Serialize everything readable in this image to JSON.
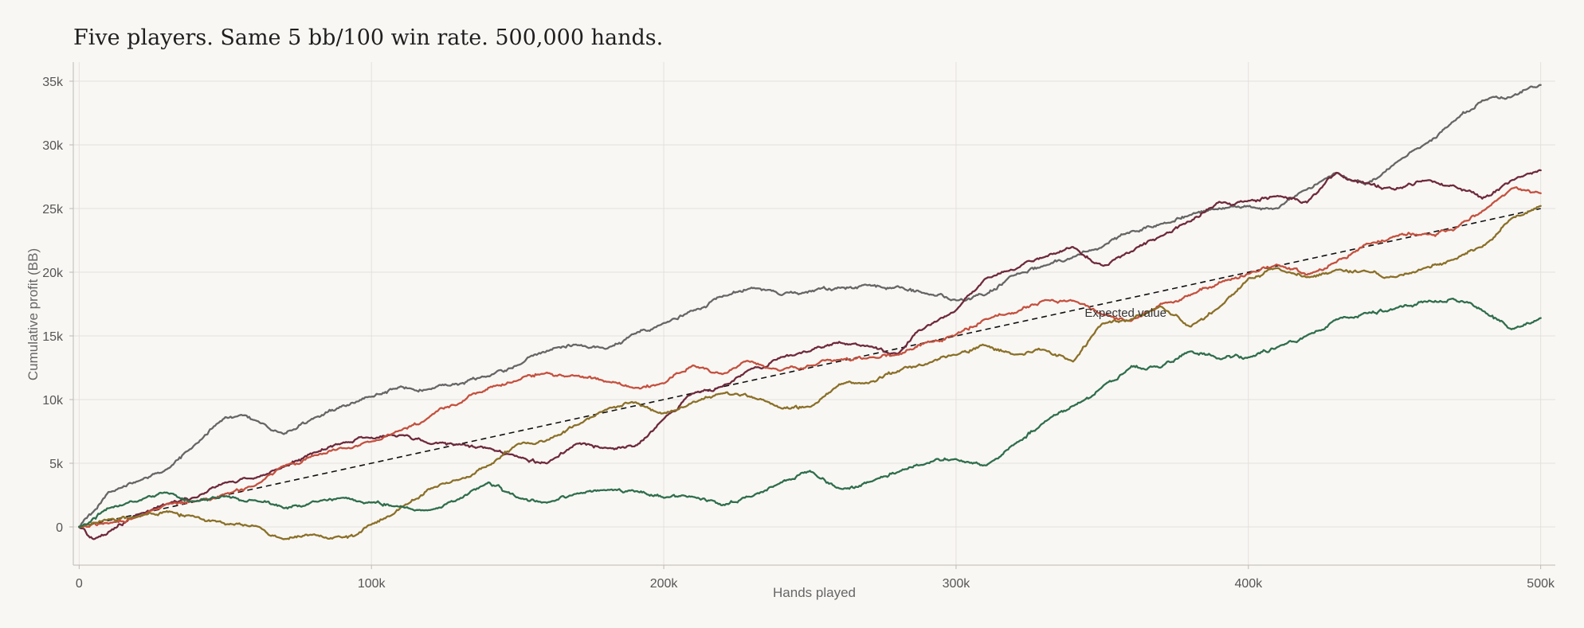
{
  "chart_data": {
    "type": "line",
    "title": "Five players. Same 5 bb/100 win rate. 500,000 hands.",
    "xlabel": "Hands played",
    "ylabel": "Cumulative profit (BB)",
    "xlim": [
      -2000,
      505000
    ],
    "ylim": [
      -3000,
      36500
    ],
    "x_ticks": [
      0,
      100000,
      200000,
      300000,
      400000,
      500000
    ],
    "x_tick_labels": [
      "0",
      "100k",
      "200k",
      "300k",
      "400k",
      "500k"
    ],
    "y_ticks": [
      0,
      5000,
      10000,
      15000,
      20000,
      25000,
      30000,
      35000
    ],
    "y_tick_labels": [
      "0",
      "5k",
      "10k",
      "15k",
      "20k",
      "25k",
      "30k",
      "35k"
    ],
    "grid": true,
    "annotation": {
      "text": "Expected value",
      "x": 344000,
      "y": 16500
    },
    "expected_value": {
      "x": [
        0,
        500000
      ],
      "y": [
        0,
        25000
      ],
      "style": "dashed",
      "color": "#111111"
    },
    "series": [
      {
        "color": "#666666",
        "x": [
          0,
          10000,
          20000,
          30000,
          40000,
          50000,
          55000,
          60000,
          70000,
          80000,
          90000,
          100000,
          110000,
          120000,
          130000,
          140000,
          150000,
          160000,
          170000,
          180000,
          190000,
          200000,
          210000,
          220000,
          230000,
          240000,
          250000,
          260000,
          270000,
          280000,
          290000,
          300000,
          310000,
          320000,
          330000,
          340000,
          350000,
          360000,
          370000,
          380000,
          390000,
          400000,
          410000,
          420000,
          430000,
          440000,
          450000,
          460000,
          470000,
          480000,
          490000,
          500000
        ],
        "y": [
          0,
          2700,
          3600,
          4500,
          6500,
          8600,
          8800,
          8400,
          7300,
          8500,
          9500,
          10200,
          11000,
          10800,
          11200,
          11800,
          12700,
          13800,
          14300,
          14000,
          15200,
          16000,
          17000,
          18100,
          18800,
          18200,
          18500,
          18800,
          19000,
          18900,
          18300,
          17800,
          18200,
          19800,
          20500,
          21200,
          22000,
          23200,
          23800,
          24500,
          25000,
          25200,
          25000,
          26500,
          27800,
          26900,
          28500,
          30000,
          31800,
          33500,
          33800,
          34700
        ]
      },
      {
        "color": "#6e2a3c",
        "x": [
          0,
          5000,
          10000,
          20000,
          30000,
          40000,
          50000,
          60000,
          70000,
          80000,
          90000,
          100000,
          110000,
          120000,
          130000,
          140000,
          150000,
          160000,
          170000,
          180000,
          190000,
          200000,
          210000,
          220000,
          230000,
          240000,
          250000,
          260000,
          270000,
          280000,
          290000,
          300000,
          310000,
          320000,
          330000,
          340000,
          350000,
          360000,
          370000,
          380000,
          390000,
          400000,
          410000,
          420000,
          430000,
          440000,
          450000,
          460000,
          470000,
          480000,
          490000,
          500000
        ],
        "y": [
          0,
          -1000,
          -400,
          1000,
          1800,
          2300,
          3500,
          3800,
          4700,
          5800,
          6600,
          7000,
          7200,
          6500,
          6500,
          6200,
          5500,
          5000,
          6500,
          6200,
          6300,
          8500,
          10500,
          11000,
          12400,
          13300,
          13800,
          14500,
          14200,
          13600,
          15800,
          17000,
          19500,
          20200,
          21200,
          22000,
          20500,
          21600,
          22800,
          24000,
          25500,
          25600,
          26000,
          25500,
          27800,
          27000,
          26500,
          27200,
          26800,
          25800,
          27200,
          28000
        ]
      },
      {
        "color": "#c4513f",
        "x": [
          0,
          10000,
          20000,
          30000,
          40000,
          50000,
          60000,
          70000,
          80000,
          90000,
          100000,
          110000,
          120000,
          130000,
          140000,
          150000,
          160000,
          170000,
          180000,
          190000,
          200000,
          210000,
          220000,
          230000,
          240000,
          250000,
          260000,
          270000,
          280000,
          290000,
          300000,
          310000,
          320000,
          330000,
          340000,
          350000,
          360000,
          370000,
          380000,
          390000,
          400000,
          410000,
          420000,
          430000,
          440000,
          450000,
          460000,
          470000,
          480000,
          490000,
          500000
        ],
        "y": [
          0,
          300,
          800,
          1800,
          2000,
          2600,
          3200,
          4800,
          5600,
          6200,
          6700,
          7600,
          8700,
          9700,
          10900,
          11500,
          12100,
          11900,
          11400,
          10900,
          11300,
          12700,
          12000,
          13000,
          12300,
          12700,
          13100,
          13300,
          13500,
          14500,
          15100,
          16300,
          16800,
          17800,
          17800,
          16700,
          16200,
          17500,
          18200,
          19200,
          19900,
          20600,
          19800,
          20800,
          22200,
          22800,
          23000,
          23300,
          24800,
          26600,
          26200
        ]
      },
      {
        "color": "#8a7028",
        "x": [
          0,
          10000,
          20000,
          30000,
          40000,
          50000,
          60000,
          70000,
          80000,
          90000,
          95000,
          100000,
          110000,
          120000,
          130000,
          140000,
          150000,
          160000,
          170000,
          180000,
          190000,
          200000,
          210000,
          220000,
          230000,
          240000,
          250000,
          260000,
          270000,
          280000,
          290000,
          300000,
          310000,
          320000,
          330000,
          340000,
          350000,
          360000,
          370000,
          380000,
          390000,
          400000,
          410000,
          420000,
          430000,
          440000,
          450000,
          460000,
          470000,
          480000,
          490000,
          500000
        ],
        "y": [
          0,
          600,
          800,
          1200,
          800,
          200,
          100,
          -1000,
          -600,
          -800,
          -600,
          200,
          1500,
          3000,
          3700,
          4800,
          6500,
          6800,
          8000,
          9200,
          9800,
          8900,
          9800,
          10500,
          10200,
          9300,
          9400,
          11200,
          11300,
          12200,
          12800,
          13500,
          14300,
          13500,
          13900,
          13000,
          16000,
          16300,
          17300,
          15700,
          17200,
          19500,
          20300,
          19600,
          20200,
          20100,
          19600,
          20300,
          21000,
          22000,
          24200,
          25200
        ]
      },
      {
        "color": "#2f6e4c",
        "x": [
          0,
          10000,
          20000,
          30000,
          40000,
          50000,
          60000,
          70000,
          80000,
          90000,
          100000,
          110000,
          120000,
          130000,
          140000,
          150000,
          160000,
          170000,
          180000,
          190000,
          200000,
          210000,
          220000,
          230000,
          240000,
          250000,
          260000,
          270000,
          280000,
          290000,
          300000,
          310000,
          320000,
          330000,
          340000,
          350000,
          360000,
          370000,
          380000,
          390000,
          400000,
          410000,
          420000,
          430000,
          440000,
          450000,
          460000,
          470000,
          480000,
          490000,
          500000
        ],
        "y": [
          0,
          1500,
          2000,
          2700,
          2000,
          2400,
          2100,
          1500,
          2000,
          2300,
          1900,
          1600,
          1300,
          2200,
          3500,
          2300,
          1900,
          2600,
          2900,
          2800,
          2300,
          2400,
          1700,
          2400,
          3500,
          4400,
          3000,
          3500,
          4300,
          5000,
          5300,
          4800,
          6500,
          8200,
          9500,
          11000,
          12600,
          12500,
          13800,
          13200,
          13300,
          14100,
          15000,
          16300,
          16800,
          17100,
          17700,
          17900,
          17000,
          15500,
          16400
        ]
      }
    ]
  }
}
